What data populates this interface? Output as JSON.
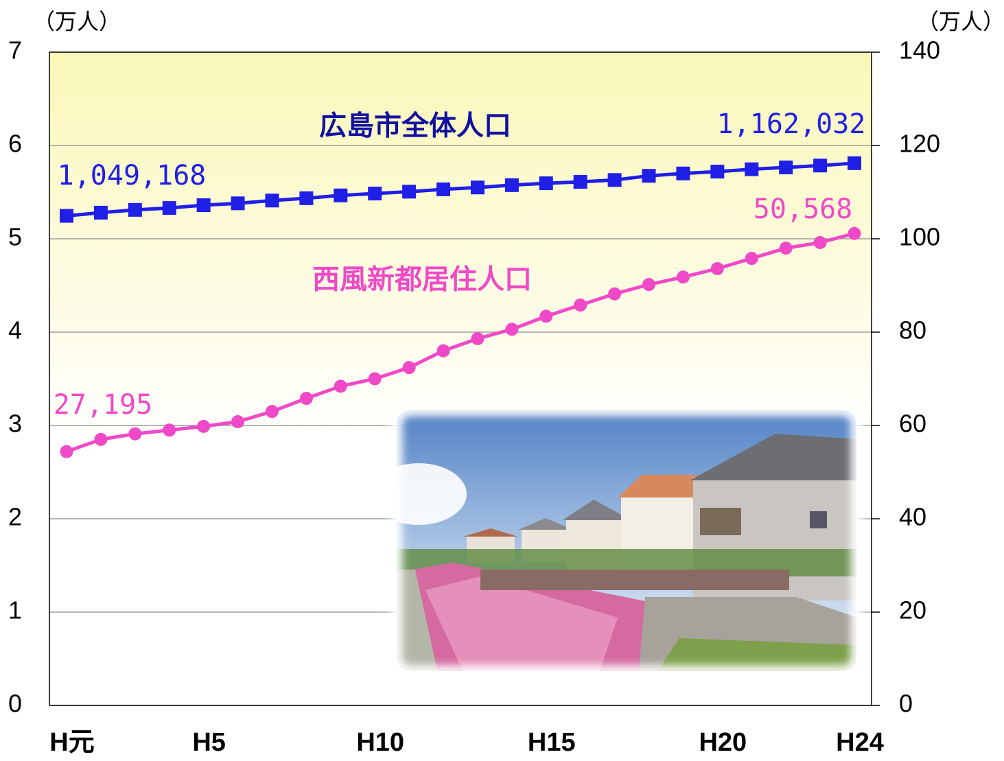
{
  "chart_data": {
    "type": "line",
    "y_label": "（万人）",
    "y2_label": "（万人）",
    "categories": [
      "H元",
      null,
      null,
      null,
      "H5",
      null,
      null,
      null,
      null,
      "H10",
      null,
      null,
      null,
      null,
      "H15",
      null,
      null,
      null,
      null,
      "H20",
      null,
      null,
      null,
      "H24"
    ],
    "series": [
      {
        "name": "広島市全体人口",
        "color": "#1f1fe6",
        "axis": "y2",
        "marker": "square",
        "values": [
          104.9168,
          105.6,
          106.2,
          106.6,
          107.2,
          107.6,
          108.2,
          108.7,
          109.3,
          109.7,
          110.1,
          110.6,
          111.0,
          111.5,
          111.9,
          112.2,
          112.6,
          113.5,
          114.0,
          114.4,
          114.9,
          115.3,
          115.7,
          116.2032
        ],
        "value_labels": [
          "1,049,168",
          null,
          null,
          null,
          null,
          null,
          null,
          null,
          null,
          null,
          null,
          null,
          null,
          null,
          null,
          null,
          null,
          null,
          null,
          null,
          null,
          null,
          null,
          "1,162,032"
        ]
      },
      {
        "name": "西風新都居住人口",
        "color": "#f049c8",
        "axis": "y",
        "marker": "circle",
        "values": [
          2.7195,
          2.85,
          2.91,
          2.95,
          2.99,
          3.04,
          3.15,
          3.29,
          3.42,
          3.5,
          3.62,
          3.8,
          3.93,
          4.03,
          4.17,
          4.29,
          4.41,
          4.51,
          4.59,
          4.68,
          4.79,
          4.9,
          4.96,
          5.0568
        ],
        "value_labels": [
          "27,195",
          null,
          null,
          null,
          null,
          null,
          null,
          null,
          null,
          null,
          null,
          null,
          null,
          null,
          null,
          null,
          null,
          null,
          null,
          null,
          null,
          null,
          null,
          "50,568"
        ]
      }
    ],
    "ylim": [
      0,
      7
    ],
    "yticks": [
      0,
      1,
      2,
      3,
      4,
      5,
      6,
      7
    ],
    "y2lim": [
      0,
      140
    ],
    "y2ticks": [
      0,
      20,
      40,
      60,
      80,
      100,
      120,
      140
    ],
    "grid": true
  }
}
